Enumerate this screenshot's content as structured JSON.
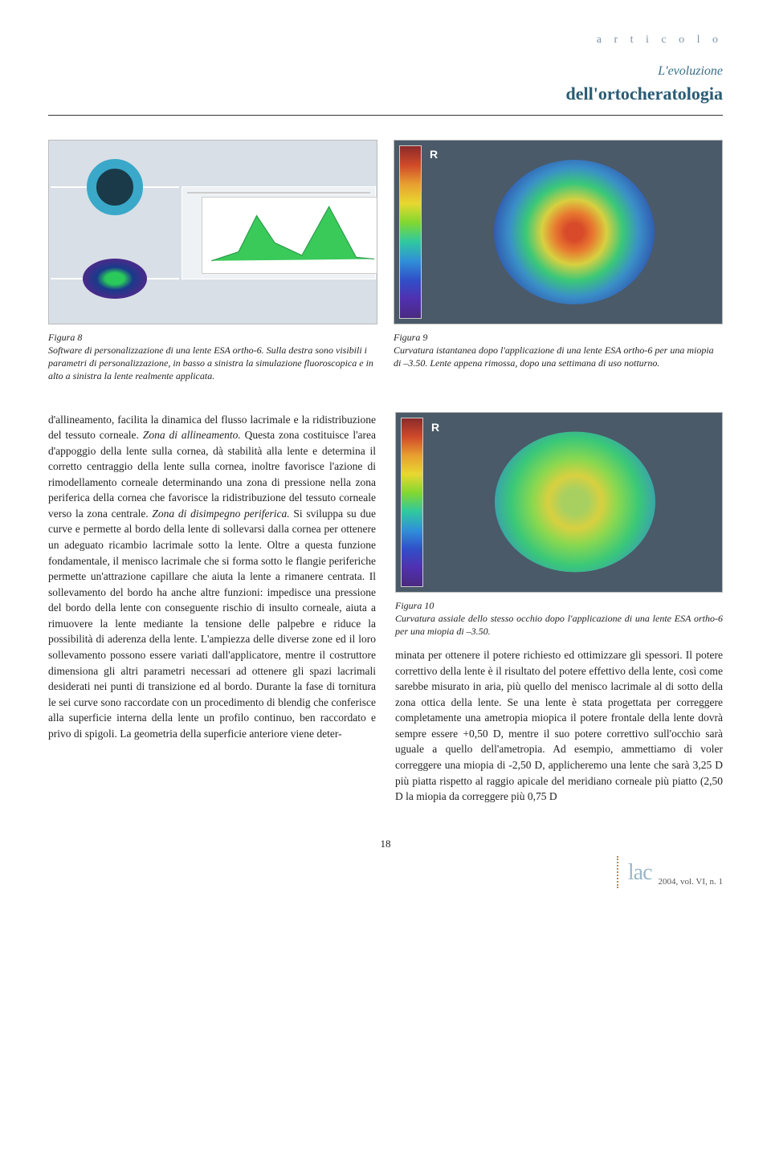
{
  "header": {
    "tag": "a r t i c o l o",
    "title_sup": "L'evoluzione",
    "title_main": "dell'ortocheratologia"
  },
  "fig8": {
    "label": "Figura 8",
    "caption": "Software di personalizzazione di una lente ESA ortho-6. Sulla destra sono visibili i parametri di personalizzazione, in basso a sinistra la simulazione fluoroscopica e in alto a sinistra la lente realmente applicata."
  },
  "fig9": {
    "label": "Figura 9",
    "caption": "Curvatura istantanea dopo l'applicazione di una lente ESA ortho-6 per una miopia di –3.50. Lente appena rimossa, dopo una settimana di uso notturno.",
    "topo_letter": "R",
    "scale_colors": [
      "#8b2a2a",
      "#d04a2a",
      "#e8a030",
      "#e8d830",
      "#80d830",
      "#30c8a0",
      "#3090d8",
      "#3050c8",
      "#5030b0",
      "#4a2a80"
    ],
    "ring_colors_out_in": [
      "#2e4aa8",
      "#3a8fc8",
      "#3ac878",
      "#d8d040",
      "#e87a30",
      "#d84a2a"
    ]
  },
  "fig10": {
    "label": "Figura 10",
    "caption": "Curvatura assiale dello stesso occhio dopo l'applicazione di una lente ESA ortho-6 per una miopia di –3.50.",
    "topo_letter": "R",
    "ring_colors_out_in": [
      "#3a8fc8",
      "#3ac878",
      "#8ad850",
      "#d8d040",
      "#a8d060"
    ]
  },
  "body": {
    "left_para": "d'allineamento, facilita la dinamica del flusso lacrimale e la ridistribuzione del tessuto corneale.\nZona di allineamento. Questa zona costituisce l'area d'appoggio della lente sulla cornea, dà stabilità alla lente e determina il corretto centraggio della lente sulla cornea, inoltre favorisce l'azione di rimodellamento corneale determinando una zona di pressione nella zona periferica della cornea che favorisce la ridistribuzione del tessuto corneale verso la zona centrale.\nZona di disimpegno periferica. Si sviluppa su due curve e permette al bordo della lente di sollevarsi dalla cornea per ottenere un adeguato ricambio lacrimale sotto la lente. Oltre a questa funzione fondamentale, il menisco lacrimale che si forma sotto le flangie periferiche permette un'attrazione capillare che aiuta la lente a rimanere centrata. Il sollevamento del bordo ha anche altre funzioni: impedisce una pressione del bordo della lente con conseguente rischio di insulto corneale, aiuta a rimuovere la lente mediante la tensione delle palpebre e riduce la possibilità di aderenza della lente.\nL'ampiezza delle diverse zone ed il loro sollevamento possono essere variati dall'applicatore, mentre il costruttore dimensiona gli altri parametri necessari ad ottenere gli spazi lacrimali desiderati nei punti di transizione ed al bordo.\nDurante la fase di tornitura le sei curve sono raccordate con un procedimento di blendig che conferisce alla superficie interna della lente un profilo continuo, ben raccordato e privo di spigoli.\nLa geometria della superficie anteriore viene deter-",
    "right_para": "minata per ottenere il potere richiesto ed ottimizzare gli spessori. Il potere correttivo della lente è il risultato del potere effettivo della lente, così come sarebbe misurato in aria, più quello del menisco lacrimale al di sotto della zona ottica della lente. Se una lente è stata progettata per correggere completamente una ametropia miopica il potere frontale della lente dovrà sempre essere +0,50 D, mentre il suo potere correttivo sull'occhio sarà uguale a quello dell'ametropia. Ad esempio, ammettiamo di voler correggere una miopia di -2,50 D, applicheremo una lente che sarà 3,25 D più piatta rispetto al raggio apicale del meridiano corneale più piatto (2,50 D la miopia da correggere più 0,75 D"
  },
  "footer": {
    "page": "18",
    "logo": "lac",
    "issue": "2004, vol. VI, n. 1"
  },
  "italic_markers": [
    "Zona di allineamento.",
    "Zona di disimpegno periferica."
  ]
}
